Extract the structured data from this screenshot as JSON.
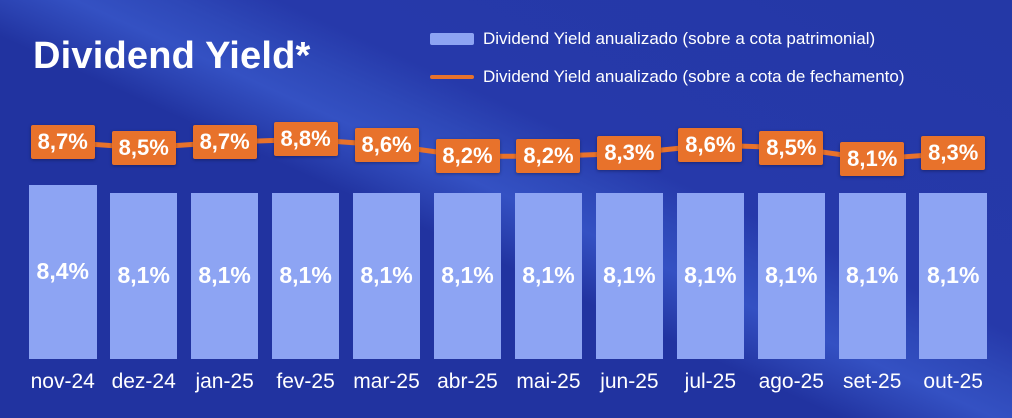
{
  "title": "Dividend Yield*",
  "legend": [
    {
      "label": "Dividend Yield anualizado (sobre a cota patrimonial)",
      "swatch": "bar-swatch",
      "color": "#8da4f3"
    },
    {
      "label": "Dividend Yield anualizado (sobre a cota de fechamento)",
      "swatch": "line-swatch",
      "color": "#e8722b"
    }
  ],
  "colors": {
    "background_base": "#2133a0",
    "background_stripe": "#3451c3",
    "bar_fill": "#8da4f3",
    "line_orange": "#e8722b",
    "text_white": "#ffffff"
  },
  "chart_data": {
    "type": "bar",
    "subtype": "bar-with-line-overlay",
    "title": "Dividend Yield*",
    "xlabel": "",
    "ylabel": "",
    "grid": false,
    "legend_position": "top-right",
    "ylim": [
      7.5,
      9.0
    ],
    "categories": [
      "nov-24",
      "dez-24",
      "jan-25",
      "fev-25",
      "mar-25",
      "abr-25",
      "mai-25",
      "jun-25",
      "jul-25",
      "ago-25",
      "set-25",
      "out-25"
    ],
    "series": [
      {
        "name": "Dividend Yield anualizado (sobre a cota patrimonial)",
        "type": "bar",
        "color": "#8da4f3",
        "values": [
          8.4,
          8.1,
          8.1,
          8.1,
          8.1,
          8.1,
          8.1,
          8.1,
          8.1,
          8.1,
          8.1,
          8.1
        ],
        "labels": [
          "8,4%",
          "8,1%",
          "8,1%",
          "8,1%",
          "8,1%",
          "8,1%",
          "8,1%",
          "8,1%",
          "8,1%",
          "8,1%",
          "8,1%",
          "8,1%"
        ]
      },
      {
        "name": "Dividend Yield anualizado (sobre a cota de fechamento)",
        "type": "line",
        "color": "#e8722b",
        "values": [
          8.7,
          8.5,
          8.7,
          8.8,
          8.6,
          8.2,
          8.2,
          8.3,
          8.6,
          8.5,
          8.1,
          8.3
        ],
        "labels": [
          "8,7%",
          "8,5%",
          "8,7%",
          "8,8%",
          "8,6%",
          "8,2%",
          "8,2%",
          "8,3%",
          "8,6%",
          "8,5%",
          "8,1%",
          "8,3%"
        ]
      }
    ]
  }
}
